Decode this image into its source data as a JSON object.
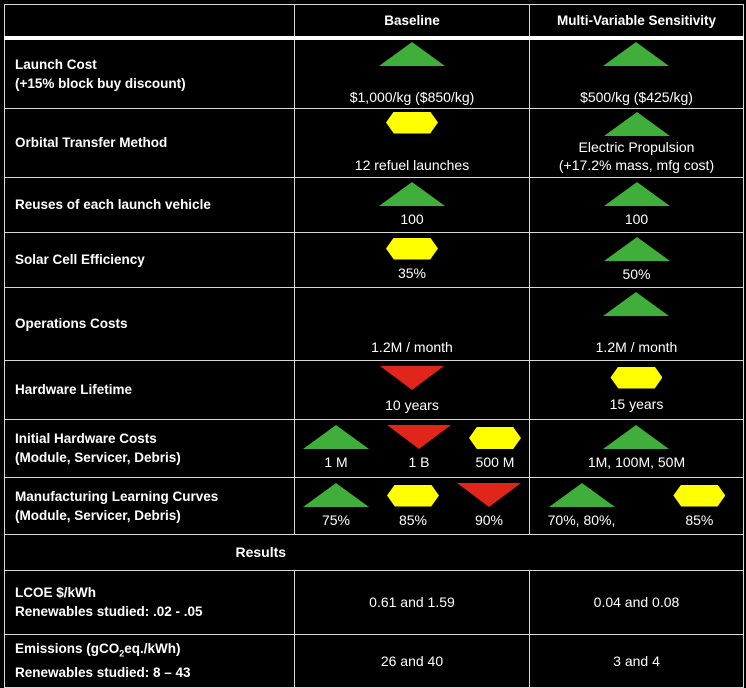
{
  "columns": {
    "baseline": "Baseline",
    "sensitivity": "Multi-Variable Sensitivity"
  },
  "colors": {
    "good": "#3fae3a",
    "neutral": "#ffff00",
    "bad": "#e0261a"
  },
  "rows": [
    {
      "label": [
        "Launch Cost",
        "(+15% block buy discount)"
      ],
      "gap": 22,
      "baseline": [
        {
          "indicator": "up",
          "text": "$1,000/kg ($850/kg)"
        }
      ],
      "sensitivity": [
        {
          "indicator": "up",
          "text": "$500/kg ($425/kg)"
        }
      ]
    },
    {
      "label": [
        "Orbital Transfer Method"
      ],
      "gap": 22,
      "baseline": [
        {
          "indicator": "hex",
          "text": "12 refuel launches"
        }
      ],
      "sensitivity": [
        {
          "indicator": "up",
          "text": "Electric Propulsion",
          "text2": "(+17.2% mass, mfg cost)"
        }
      ]
    },
    {
      "label": [
        "Reuses of each launch vehicle"
      ],
      "gap": 4,
      "baseline": [
        {
          "indicator": "up",
          "text": "100"
        }
      ],
      "sensitivity": [
        {
          "indicator": "up",
          "text": "100"
        }
      ]
    },
    {
      "label": [
        "Solar Cell Efficiency"
      ],
      "gap": 4,
      "baseline": [
        {
          "indicator": "hex",
          "text": "35%"
        }
      ],
      "sensitivity": [
        {
          "indicator": "up",
          "text": "50%"
        }
      ]
    },
    {
      "label": [
        "Operations Costs"
      ],
      "gap": 22,
      "baseline": [
        {
          "indicator": "none",
          "text": "1.2M / month"
        }
      ],
      "sensitivity": [
        {
          "indicator": "up",
          "text": "1.2M / month"
        }
      ]
    },
    {
      "label": [
        "Hardware Lifetime"
      ],
      "gap": 6,
      "baseline": [
        {
          "indicator": "down",
          "text": "10 years"
        }
      ],
      "sensitivity": [
        {
          "indicator": "hex",
          "text": "15 years"
        }
      ]
    },
    {
      "label": [
        "Initial Hardware Costs",
        "(Module, Servicer, Debris)"
      ],
      "gap": 4,
      "baseline": [
        {
          "indicator": "up",
          "text": "1 M"
        },
        {
          "indicator": "down",
          "text": "1 B"
        },
        {
          "indicator": "hex",
          "text": "500 M"
        }
      ],
      "sensitivity": [
        {
          "indicator": "up",
          "text": "1M, 100M, 50M"
        }
      ]
    },
    {
      "label": [
        "Manufacturing Learning Curves",
        "(Module, Servicer, Debris)"
      ],
      "gap": 4,
      "baseline": [
        {
          "indicator": "up",
          "text": "75%"
        },
        {
          "indicator": "hex",
          "text": "85%"
        },
        {
          "indicator": "down",
          "text": "90%"
        }
      ],
      "sensitivity": [
        {
          "indicator": "up",
          "text": "70%, 80%,"
        },
        {
          "indicator": "hex",
          "text": "85%"
        }
      ]
    }
  ],
  "results_header": "Results",
  "results": [
    {
      "label1": "LCOE $/kWh",
      "label2": "Renewables studied: .02 - .05",
      "baseline": "0.61 and 1.59",
      "sensitivity": "0.04 and 0.08"
    },
    {
      "label1_pre": "Emissions (gCO",
      "label1_sub": "2",
      "label1_post": "eq./kWh)",
      "label2": "Renewables studied: 8 – 43",
      "baseline": "26 and 40",
      "sensitivity": "3 and 4"
    }
  ]
}
